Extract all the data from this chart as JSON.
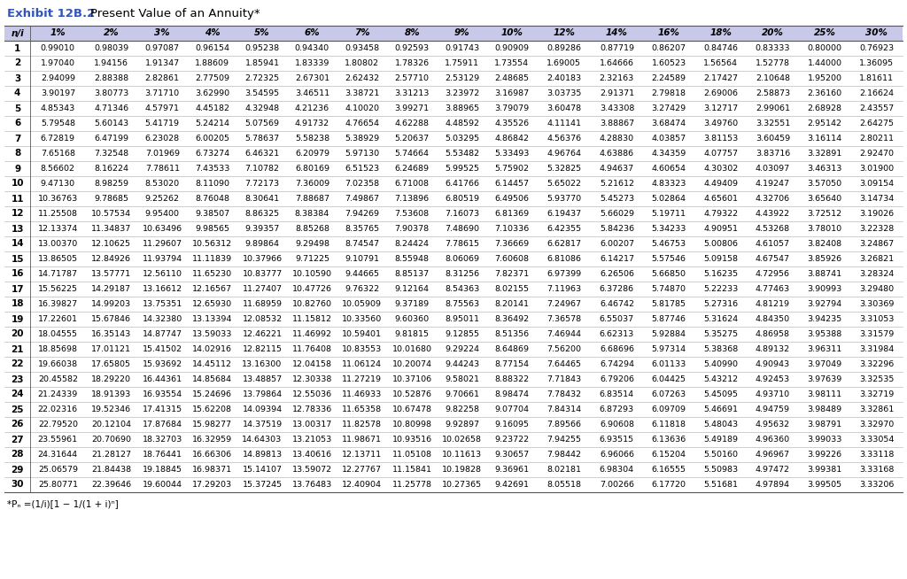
{
  "title": "Exhibit 12B.2",
  "title_color": "#3355BB",
  "subtitle": "  Present Value of an Annuity*",
  "footnote": "*Pₙ =(1/i)[1 − 1/(1 + i)ⁿ]",
  "header_bg": "#C8C8E8",
  "odd_row_bg": "#FFFFFF",
  "even_row_bg": "#FFFFFF",
  "columns": [
    "n/i",
    "1%",
    "2%",
    "3%",
    "4%",
    "5%",
    "6%",
    "7%",
    "8%",
    "9%",
    "10%",
    "12%",
    "14%",
    "16%",
    "18%",
    "20%",
    "25%",
    "30%"
  ],
  "data": [
    [
      1,
      0.9901,
      0.98039,
      0.97087,
      0.96154,
      0.95238,
      0.9434,
      0.93458,
      0.92593,
      0.91743,
      0.90909,
      0.89286,
      0.87719,
      0.86207,
      0.84746,
      0.83333,
      0.8,
      0.76923
    ],
    [
      2,
      1.9704,
      1.94156,
      1.91347,
      1.88609,
      1.85941,
      1.83339,
      1.80802,
      1.78326,
      1.75911,
      1.73554,
      1.69005,
      1.64666,
      1.60523,
      1.56564,
      1.52778,
      1.44,
      1.36095
    ],
    [
      3,
      2.94099,
      2.88388,
      2.82861,
      2.77509,
      2.72325,
      2.67301,
      2.62432,
      2.5771,
      2.53129,
      2.48685,
      2.40183,
      2.32163,
      2.24589,
      2.17427,
      2.10648,
      1.952,
      1.81611
    ],
    [
      4,
      3.90197,
      3.80773,
      3.7171,
      3.6299,
      3.54595,
      3.46511,
      3.38721,
      3.31213,
      3.23972,
      3.16987,
      3.03735,
      2.91371,
      2.79818,
      2.69006,
      2.58873,
      2.3616,
      2.16624
    ],
    [
      5,
      4.85343,
      4.71346,
      4.57971,
      4.45182,
      4.32948,
      4.21236,
      4.1002,
      3.99271,
      3.88965,
      3.79079,
      3.60478,
      3.43308,
      3.27429,
      3.12717,
      2.99061,
      2.68928,
      2.43557
    ],
    [
      6,
      5.79548,
      5.60143,
      5.41719,
      5.24214,
      5.07569,
      4.91732,
      4.76654,
      4.62288,
      4.48592,
      4.35526,
      4.11141,
      3.88867,
      3.68474,
      3.4976,
      3.32551,
      2.95142,
      2.64275
    ],
    [
      7,
      6.72819,
      6.47199,
      6.23028,
      6.00205,
      5.78637,
      5.58238,
      5.38929,
      5.20637,
      5.03295,
      4.86842,
      4.56376,
      4.2883,
      4.03857,
      3.81153,
      3.60459,
      3.16114,
      2.80211
    ],
    [
      8,
      7.65168,
      7.32548,
      7.01969,
      6.73274,
      6.46321,
      6.20979,
      5.9713,
      5.74664,
      5.53482,
      5.33493,
      4.96764,
      4.63886,
      4.34359,
      4.07757,
      3.83716,
      3.32891,
      2.9247
    ],
    [
      9,
      8.56602,
      8.16224,
      7.78611,
      7.43533,
      7.10782,
      6.80169,
      6.51523,
      6.24689,
      5.99525,
      5.75902,
      5.32825,
      4.94637,
      4.60654,
      4.30302,
      4.03097,
      3.46313,
      3.019
    ],
    [
      10,
      9.4713,
      8.98259,
      8.5302,
      8.1109,
      7.72173,
      7.36009,
      7.02358,
      6.71008,
      6.41766,
      6.14457,
      5.65022,
      5.21612,
      4.83323,
      4.49409,
      4.19247,
      3.5705,
      3.09154
    ],
    [
      11,
      10.36763,
      9.78685,
      9.25262,
      8.76048,
      8.30641,
      7.88687,
      7.49867,
      7.13896,
      6.80519,
      6.49506,
      5.9377,
      5.45273,
      5.02864,
      4.65601,
      4.32706,
      3.6564,
      3.14734
    ],
    [
      12,
      11.25508,
      10.57534,
      9.954,
      9.38507,
      8.86325,
      8.38384,
      7.94269,
      7.53608,
      7.16073,
      6.81369,
      6.19437,
      5.66029,
      5.19711,
      4.79322,
      4.43922,
      3.72512,
      3.19026
    ],
    [
      13,
      12.13374,
      11.34837,
      10.63496,
      9.98565,
      9.39357,
      8.85268,
      8.35765,
      7.90378,
      7.4869,
      7.10336,
      6.42355,
      5.84236,
      5.34233,
      4.90951,
      4.53268,
      3.7801,
      3.22328
    ],
    [
      14,
      13.0037,
      12.10625,
      11.29607,
      10.56312,
      9.89864,
      9.29498,
      8.74547,
      8.24424,
      7.78615,
      7.36669,
      6.62817,
      6.00207,
      5.46753,
      5.00806,
      4.61057,
      3.82408,
      3.24867
    ],
    [
      15,
      13.86505,
      12.84926,
      11.93794,
      11.11839,
      10.37966,
      9.71225,
      9.10791,
      8.55948,
      8.06069,
      7.60608,
      6.81086,
      6.14217,
      5.57546,
      5.09158,
      4.67547,
      3.85926,
      3.26821
    ],
    [
      16,
      14.71787,
      13.57771,
      12.5611,
      11.6523,
      10.83777,
      10.1059,
      9.44665,
      8.85137,
      8.31256,
      7.82371,
      6.97399,
      6.26506,
      5.6685,
      5.16235,
      4.72956,
      3.88741,
      3.28324
    ],
    [
      17,
      15.56225,
      14.29187,
      13.16612,
      12.16567,
      11.27407,
      10.47726,
      9.76322,
      9.12164,
      8.54363,
      8.02155,
      7.11963,
      6.37286,
      5.7487,
      5.22233,
      4.77463,
      3.90993,
      3.2948
    ],
    [
      18,
      16.39827,
      14.99203,
      13.75351,
      12.6593,
      11.68959,
      10.8276,
      10.05909,
      9.37189,
      8.75563,
      8.20141,
      7.24967,
      6.46742,
      5.81785,
      5.27316,
      4.81219,
      3.92794,
      3.30369
    ],
    [
      19,
      17.22601,
      15.67846,
      14.3238,
      13.13394,
      12.08532,
      11.15812,
      10.3356,
      9.6036,
      8.95011,
      8.36492,
      7.36578,
      6.55037,
      5.87746,
      5.31624,
      4.8435,
      3.94235,
      3.31053
    ],
    [
      20,
      18.04555,
      16.35143,
      14.87747,
      13.59033,
      12.46221,
      11.46992,
      10.59401,
      9.81815,
      9.12855,
      8.51356,
      7.46944,
      6.62313,
      5.92884,
      5.35275,
      4.86958,
      3.95388,
      3.31579
    ],
    [
      21,
      18.85698,
      17.01121,
      15.41502,
      14.02916,
      12.82115,
      11.76408,
      10.83553,
      10.0168,
      9.29224,
      8.64869,
      7.562,
      6.68696,
      5.97314,
      5.38368,
      4.89132,
      3.96311,
      3.31984
    ],
    [
      22,
      19.66038,
      17.65805,
      15.93692,
      14.45112,
      13.163,
      12.04158,
      11.06124,
      10.20074,
      9.44243,
      8.77154,
      7.64465,
      6.74294,
      6.01133,
      5.4099,
      4.90943,
      3.97049,
      3.32296
    ],
    [
      23,
      20.45582,
      18.2922,
      16.44361,
      14.85684,
      13.48857,
      12.30338,
      11.27219,
      10.37106,
      9.58021,
      8.88322,
      7.71843,
      6.79206,
      6.04425,
      5.43212,
      4.92453,
      3.97639,
      3.32535
    ],
    [
      24,
      21.24339,
      18.91393,
      16.93554,
      15.24696,
      13.79864,
      12.55036,
      11.46933,
      10.52876,
      9.70661,
      8.98474,
      7.78432,
      6.83514,
      6.07263,
      5.45095,
      4.9371,
      3.98111,
      3.32719
    ],
    [
      25,
      22.02316,
      19.52346,
      17.41315,
      15.62208,
      14.09394,
      12.78336,
      11.65358,
      10.67478,
      9.82258,
      9.07704,
      7.84314,
      6.87293,
      6.09709,
      5.46691,
      4.94759,
      3.98489,
      3.32861
    ],
    [
      26,
      22.7952,
      20.12104,
      17.87684,
      15.98277,
      14.37519,
      13.00317,
      11.82578,
      10.80998,
      9.92897,
      9.16095,
      7.89566,
      6.90608,
      6.11818,
      5.48043,
      4.95632,
      3.98791,
      3.3297
    ],
    [
      27,
      23.55961,
      20.7069,
      18.32703,
      16.32959,
      14.64303,
      13.21053,
      11.98671,
      10.93516,
      10.02658,
      9.23722,
      7.94255,
      6.93515,
      6.13636,
      5.49189,
      4.9636,
      3.99033,
      3.33054
    ],
    [
      28,
      24.31644,
      21.28127,
      18.76441,
      16.66306,
      14.89813,
      13.40616,
      12.13711,
      11.05108,
      10.11613,
      9.30657,
      7.98442,
      6.96066,
      6.15204,
      5.5016,
      4.96967,
      3.99226,
      3.33118
    ],
    [
      29,
      25.06579,
      21.84438,
      19.18845,
      16.98371,
      15.14107,
      13.59072,
      12.27767,
      11.15841,
      10.19828,
      9.36961,
      8.02181,
      6.98304,
      6.16555,
      5.50983,
      4.97472,
      3.99381,
      3.33168
    ],
    [
      30,
      25.80771,
      22.39646,
      19.60044,
      17.29203,
      15.37245,
      13.76483,
      12.40904,
      11.25778,
      10.27365,
      9.42691,
      8.05518,
      7.00266,
      6.1772,
      5.51681,
      4.97894,
      3.99505,
      3.33206
    ]
  ],
  "col_widths_raw": [
    26,
    55,
    52,
    50,
    50,
    50,
    50,
    50,
    50,
    50,
    50,
    54,
    52,
    52,
    52,
    52,
    52,
    52
  ]
}
